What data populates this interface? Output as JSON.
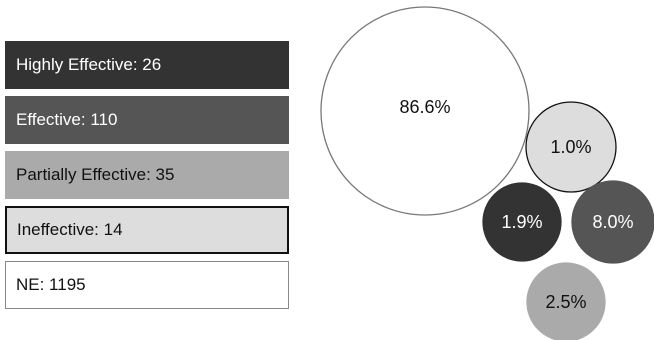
{
  "chart_data": {
    "type": "bubble",
    "legend": [
      {
        "label": "Highly Effective: 26",
        "category": "Highly Effective",
        "count": 26,
        "color": "#333333",
        "text_color": "#ffffff"
      },
      {
        "label": "Effective: 110",
        "category": "Effective",
        "count": 110,
        "color": "#555555",
        "text_color": "#ffffff"
      },
      {
        "label": "Partially Effective: 35",
        "category": "Partially Effective",
        "count": 35,
        "color": "#aaaaaa",
        "text_color": "#111111"
      },
      {
        "label": "Ineffective: 14",
        "category": "Ineffective",
        "count": 14,
        "color": "#dddddd",
        "text_color": "#111111",
        "border": "#111111"
      },
      {
        "label": "NE: 1195",
        "category": "NE",
        "count": 1195,
        "color": "#ffffff",
        "text_color": "#111111"
      }
    ],
    "bubbles": [
      {
        "category": "NE",
        "label": "86.6%",
        "value": 86.6,
        "fill": "#ffffff",
        "stroke": "#777777",
        "text_color": "#111111"
      },
      {
        "category": "Ineffective",
        "label": "1.0%",
        "value": 1.0,
        "fill": "#dddddd",
        "stroke": "#111111",
        "text_color": "#111111"
      },
      {
        "category": "Highly Effective",
        "label": "1.9%",
        "value": 1.9,
        "fill": "#333333",
        "stroke": "#333333",
        "text_color": "#ffffff"
      },
      {
        "category": "Effective",
        "label": "8.0%",
        "value": 8.0,
        "fill": "#555555",
        "stroke": "#555555",
        "text_color": "#ffffff"
      },
      {
        "category": "Partially Effective",
        "label": "2.5%",
        "value": 2.5,
        "fill": "#aaaaaa",
        "stroke": "#aaaaaa",
        "text_color": "#111111"
      }
    ]
  }
}
